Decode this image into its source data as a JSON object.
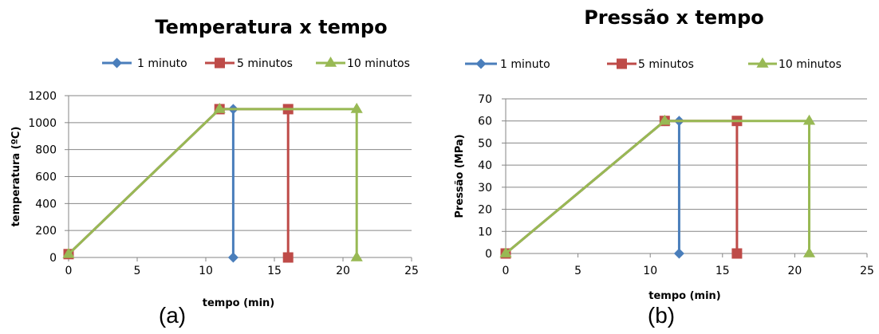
{
  "chart_data": [
    {
      "type": "line",
      "title": "Temperatura x tempo",
      "xlabel": "tempo (min)",
      "ylabel": "temperatura (ºC)",
      "xlim": [
        0,
        25
      ],
      "ylim": [
        0,
        1200
      ],
      "xticks": [
        0,
        5,
        10,
        15,
        20,
        25
      ],
      "yticks": [
        0,
        200,
        400,
        600,
        800,
        1000,
        1200
      ],
      "grid": "horizontal",
      "legend_position": "top",
      "caption": "(a)",
      "series": [
        {
          "name": "1 minuto",
          "color": "#4A7EBB",
          "marker": "diamond",
          "points": [
            [
              0,
              25
            ],
            [
              11,
              1100
            ],
            [
              12,
              1100
            ],
            [
              12,
              0
            ]
          ]
        },
        {
          "name": "5 minutos",
          "color": "#BE4B48",
          "marker": "square",
          "points": [
            [
              0,
              25
            ],
            [
              11,
              1100
            ],
            [
              16,
              1100
            ],
            [
              16,
              0
            ]
          ]
        },
        {
          "name": "10 minutos",
          "color": "#98B954",
          "marker": "triangle",
          "points": [
            [
              0,
              25
            ],
            [
              11,
              1100
            ],
            [
              21,
              1100
            ],
            [
              21,
              0
            ]
          ]
        }
      ]
    },
    {
      "type": "line",
      "title": "Pressão x tempo",
      "xlabel": "tempo (min)",
      "ylabel": "Pressão (MPa)",
      "xlim": [
        0,
        25
      ],
      "ylim": [
        0,
        70
      ],
      "xticks": [
        0,
        5,
        10,
        15,
        20,
        25
      ],
      "yticks": [
        0,
        10,
        20,
        30,
        40,
        50,
        60,
        70
      ],
      "grid": "horizontal",
      "legend_position": "top",
      "caption": "(b)",
      "series": [
        {
          "name": "1 minuto",
          "color": "#4A7EBB",
          "marker": "diamond",
          "points": [
            [
              0,
              0
            ],
            [
              11,
              60
            ],
            [
              12,
              60
            ],
            [
              12,
              0
            ]
          ]
        },
        {
          "name": "5 minutos",
          "color": "#BE4B48",
          "marker": "square",
          "points": [
            [
              0,
              0
            ],
            [
              11,
              60
            ],
            [
              16,
              60
            ],
            [
              16,
              0
            ]
          ]
        },
        {
          "name": "10 minutos",
          "color": "#98B954",
          "marker": "triangle",
          "points": [
            [
              0,
              0
            ],
            [
              11,
              60
            ],
            [
              21,
              60
            ],
            [
              21,
              0
            ]
          ]
        }
      ]
    }
  ]
}
